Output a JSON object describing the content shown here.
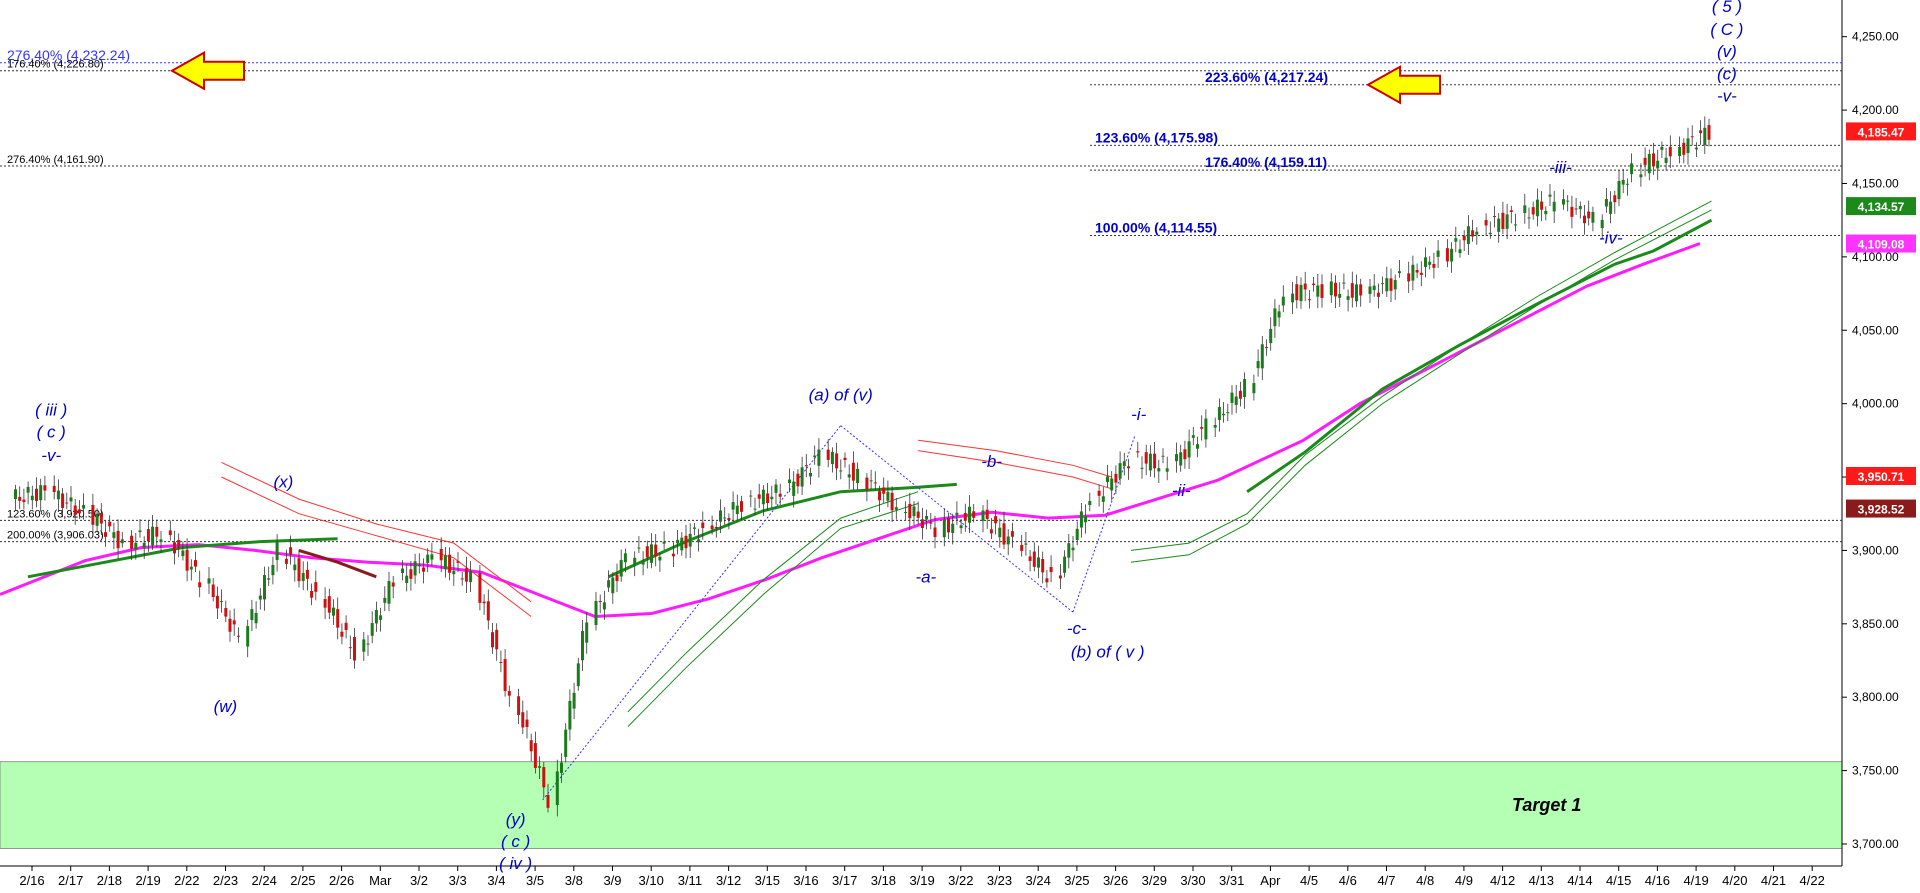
{
  "chart_data": {
    "type": "candlestick",
    "y_axis": {
      "min": 3685,
      "max": 4275,
      "ticks": [
        "4,250.00",
        "4,200.00",
        "4,150.00",
        "4,100.00",
        "4,050.00",
        "4,000.00",
        "3,950.00",
        "3,900.00",
        "3,850.00",
        "3,800.00",
        "3,750.00",
        "3,700.00"
      ],
      "tick_values": [
        4250,
        4200,
        4150,
        4100,
        4050,
        4000,
        3950,
        3900,
        3850,
        3800,
        3750,
        3700
      ]
    },
    "x_axis": {
      "labels": [
        "2/16",
        "2/17",
        "2/18",
        "2/19",
        "2/22",
        "2/23",
        "2/24",
        "2/25",
        "2/26",
        "Mar",
        "3/2",
        "3/3",
        "3/4",
        "3/5",
        "3/8",
        "3/9",
        "3/10",
        "3/11",
        "3/12",
        "3/15",
        "3/16",
        "3/17",
        "3/18",
        "3/19",
        "3/22",
        "3/23",
        "3/24",
        "3/25",
        "3/26",
        "3/29",
        "3/30",
        "3/31",
        "Apr",
        "4/5",
        "4/6",
        "4/7",
        "4/8",
        "4/9",
        "4/12",
        "4/13",
        "4/14",
        "4/15",
        "4/16",
        "4/19",
        "4/20",
        "4/21",
        "4/22"
      ]
    },
    "price_tags": [
      {
        "text": "4,185.47",
        "value": 4185.47,
        "color": "#ff1a1a"
      },
      {
        "text": "4,134.57",
        "value": 4134.57,
        "color": "#1b8a1b"
      },
      {
        "text": "4,109.08",
        "value": 4109.08,
        "color": "#ff33ff"
      },
      {
        "text": "3,950.71",
        "value": 3950.71,
        "color": "#ff1a1a"
      },
      {
        "text": "3,928.52",
        "value": 3928.52,
        "color": "#8b1a1a"
      }
    ],
    "fib_levels": [
      {
        "text": "276.40% (4,232.24)",
        "value": 4232.24,
        "side": "left",
        "color": "#3333ff"
      },
      {
        "text": "176.40% (4,226.80)",
        "value": 4226.8,
        "side": "left",
        "color": "#000000"
      },
      {
        "text": "276.40% (4,161.90)",
        "value": 4161.9,
        "side": "left",
        "color": "#000000"
      },
      {
        "text": "123.60% (3,920.50)",
        "value": 3920.5,
        "side": "left",
        "color": "#000000"
      },
      {
        "text": "200.00% (3,906.03)",
        "value": 3906.03,
        "side": "left",
        "color": "#000000"
      },
      {
        "text": "223.60% (4,217.24)",
        "value": 4217.24,
        "side": "right",
        "color": "#0000cc"
      },
      {
        "text": "123.60% (4,175.98)",
        "value": 4175.98,
        "side": "right",
        "color": "#0000cc"
      },
      {
        "text": "176.40% (4,159.11)",
        "value": 4159.11,
        "side": "right",
        "color": "#0000cc"
      },
      {
        "text": "100.00% (4,114.55)",
        "value": 4114.55,
        "side": "right",
        "color": "#0000cc"
      }
    ],
    "target_zone": {
      "label": "Target 1",
      "from": 3697,
      "to": 3756
    },
    "wave_labels": [
      {
        "text": "( iii )",
        "xi": 0.6,
        "y": 3992
      },
      {
        "text": "( c )",
        "xi": 0.6,
        "y": 3977
      },
      {
        "text": "-v-",
        "xi": 0.6,
        "y": 3961
      },
      {
        "text": "(w)",
        "xi": 5.1,
        "y": 3790
      },
      {
        "text": "(x)",
        "xi": 6.6,
        "y": 3943
      },
      {
        "text": "(y)",
        "xi": 12.6,
        "y": 3713
      },
      {
        "text": "( c )",
        "xi": 12.6,
        "y": 3698
      },
      {
        "text": "( iv )",
        "xi": 12.6,
        "y": 3683
      },
      {
        "text": "(a) of (v)",
        "xi": 21.0,
        "y": 4002
      },
      {
        "text": "-a-",
        "xi": 23.2,
        "y": 3878
      },
      {
        "text": "-b-",
        "xi": 24.9,
        "y": 3957
      },
      {
        "text": "-c-",
        "xi": 27.1,
        "y": 3843
      },
      {
        "text": "(b) of ( v )",
        "xi": 27.9,
        "y": 3827
      },
      {
        "text": "-i-",
        "xi": 28.7,
        "y": 3989
      },
      {
        "text": "-ii-",
        "xi": 29.8,
        "y": 3937
      },
      {
        "text": "-iii-",
        "xi": 39.6,
        "y": 4157
      },
      {
        "text": "-iv-",
        "xi": 40.9,
        "y": 4109
      },
      {
        "text": "( 5 )",
        "xi": 43.9,
        "y": 4267
      },
      {
        "text": "( C )",
        "xi": 43.9,
        "y": 4251
      },
      {
        "text": "(v)",
        "xi": 43.9,
        "y": 4236
      },
      {
        "text": "(c)",
        "xi": 43.9,
        "y": 4221
      },
      {
        "text": "-v-",
        "xi": 43.9,
        "y": 4206
      }
    ],
    "closes": [
      3940,
      3925,
      3905,
      3912,
      3880,
      3840,
      3900,
      3870,
      3830,
      3880,
      3895,
      3880,
      3800,
      3730,
      3855,
      3895,
      3900,
      3915,
      3932,
      3940,
      3965,
      3950,
      3930,
      3915,
      3925,
      3905,
      3880,
      3935,
      3962,
      3958,
      3985,
      4012,
      4075,
      4078,
      4075,
      4085,
      4100,
      4120,
      4128,
      4138,
      4125,
      4160,
      4172,
      4185.47
    ],
    "ma_pink": [
      3870,
      3893,
      3902,
      3904,
      3900,
      3895,
      3892,
      3890,
      3885,
      3870,
      3855,
      3857,
      3867,
      3880,
      3895,
      3908,
      3921,
      3926,
      3922,
      3924,
      3936,
      3948,
      3975,
      4000,
      4020,
      4040,
      4060,
      4080,
      4095,
      4109.08
    ],
    "ma_pink_x": [
      0,
      3,
      5,
      7,
      9,
      11,
      13,
      15,
      17,
      19,
      21,
      23,
      25,
      27,
      29,
      31,
      33,
      35,
      37,
      39,
      41,
      43,
      46,
      48,
      50,
      52,
      54,
      56,
      58,
      60
    ]
  }
}
